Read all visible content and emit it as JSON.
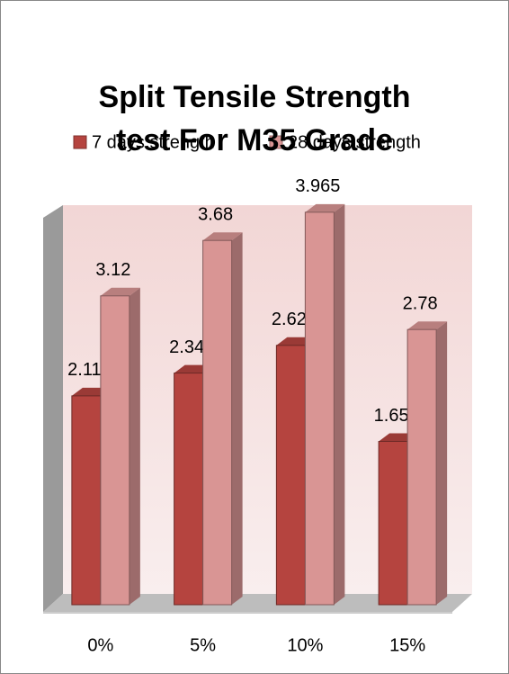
{
  "chart_data": {
    "type": "bar3d",
    "title": "Split Tensile Strength test For M35 Grade",
    "categories": [
      "0%",
      "5%",
      "10%",
      "15%"
    ],
    "series": [
      {
        "name": "7 days strength",
        "color": "#b5443f",
        "values": [
          2.11,
          2.34,
          2.62,
          1.65
        ]
      },
      {
        "name": "28 days strength",
        "color": "#d99594",
        "values": [
          3.12,
          3.68,
          3.965,
          2.78
        ],
        "value_labels": [
          "3.12",
          "3.68",
          "3.965",
          "2.78"
        ]
      }
    ],
    "ylim": [
      0,
      4
    ]
  }
}
